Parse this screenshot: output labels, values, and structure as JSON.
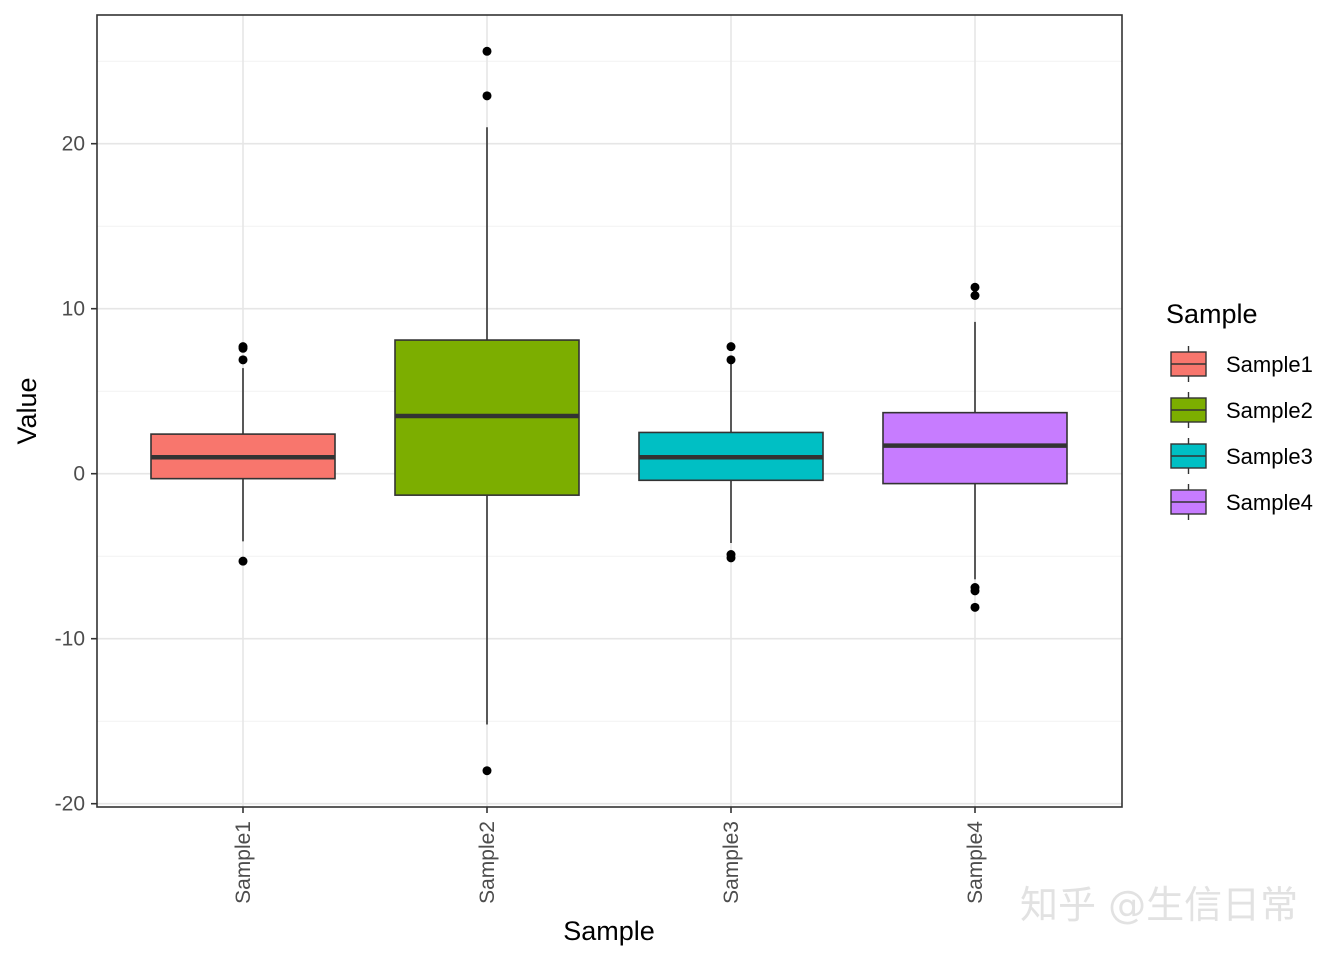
{
  "chart_data": {
    "type": "box",
    "title": "",
    "xlabel": "Sample",
    "ylabel": "Value",
    "ylim": [
      -20.2,
      27.8
    ],
    "yticks": [
      -20,
      -10,
      0,
      10,
      20
    ],
    "ytick_labels": [
      "-20",
      "-10",
      "0",
      "10",
      "20"
    ],
    "grid": true,
    "legend_position": "right",
    "legend_title": "Sample",
    "categories": [
      "Sample1",
      "Sample2",
      "Sample3",
      "Sample4"
    ],
    "series": [
      {
        "name": "Sample1",
        "color": "#F8766D",
        "whisker_low": -4.1,
        "q1": -0.3,
        "median": 1.0,
        "q3": 2.4,
        "whisker_high": 6.4,
        "outliers": [
          -5.3,
          6.9,
          7.6,
          7.7
        ]
      },
      {
        "name": "Sample2",
        "color": "#7CAE00",
        "whisker_low": -15.2,
        "q1": -1.3,
        "median": 3.5,
        "q3": 8.1,
        "whisker_high": 21.0,
        "outliers": [
          -18.0,
          22.9,
          25.6
        ]
      },
      {
        "name": "Sample3",
        "color": "#00BFC4",
        "whisker_low": -4.2,
        "q1": -0.4,
        "median": 1.0,
        "q3": 2.5,
        "whisker_high": 6.7,
        "outliers": [
          -5.1,
          -4.9,
          6.9,
          7.7
        ]
      },
      {
        "name": "Sample4",
        "color": "#C77CFF",
        "whisker_low": -6.4,
        "q1": -0.6,
        "median": 1.7,
        "q3": 3.7,
        "whisker_high": 9.2,
        "outliers": [
          -8.1,
          -7.1,
          -6.9,
          10.8,
          11.3
        ]
      }
    ]
  },
  "watermark": "知乎 @生信日常"
}
